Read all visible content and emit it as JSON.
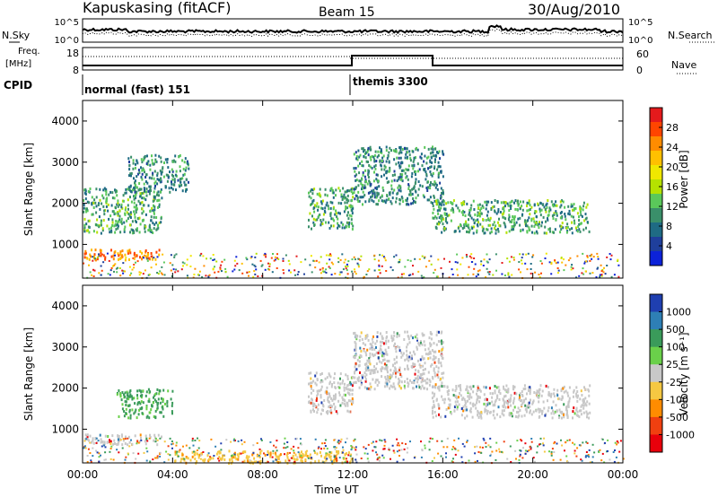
{
  "header": {
    "station": "Kapuskasing (fitACF)",
    "beam": "Beam 15",
    "date": "30/Aug/2010"
  },
  "top_panels": {
    "nsky_label": "N.Sky",
    "nsearch_label": "N.Search",
    "noise_ticks": [
      "10^5",
      "10^0"
    ],
    "freq_label_1": "Freq.",
    "freq_label_2": "[MHz]",
    "freq_ticks": [
      "18",
      "8"
    ],
    "nave_label": "Nave",
    "nave_ticks": [
      "60",
      "0"
    ],
    "cpid_label": "CPID",
    "cpid_modes": [
      "normal (fast) 151",
      "themis 3300"
    ]
  },
  "power_colorbar": {
    "label": "Power [dB]",
    "ticks": [
      "28",
      "24",
      "20",
      "16",
      "12",
      "8",
      "4"
    ],
    "colors": [
      "#e41a1c",
      "#ff4500",
      "#ff8c00",
      "#ffc000",
      "#f0e800",
      "#b5e100",
      "#5ac85a",
      "#3a8f6a",
      "#1f6b84",
      "#1f3f9c",
      "#0c22d8"
    ]
  },
  "velocity_colorbar": {
    "label": "Velocity [m s⁻¹]",
    "ticks": [
      "1000",
      "500",
      "100",
      "25",
      "-25",
      "-100",
      "-500",
      "-1000"
    ],
    "colors": [
      "#1f3fb0",
      "#2e7fb5",
      "#3a9b5a",
      "#6ad04a",
      "#c8c8c8",
      "#f5c842",
      "#ff8c00",
      "#f04010",
      "#e8000b"
    ]
  },
  "chart_data": [
    {
      "type": "heatmap",
      "ylabel": "Slant Range [km]",
      "xlim": [
        0,
        24
      ],
      "ylim": [
        180,
        4500
      ],
      "y_ticks": [
        "1000",
        "2000",
        "3000",
        "4000"
      ],
      "x_ticks": [
        "00:00",
        "04:00",
        "08:00",
        "12:00",
        "16:00",
        "20:00",
        "00:00"
      ],
      "features": [
        {
          "time": [
            0.0,
            3.5
          ],
          "range": [
            650,
            900
          ],
          "power_db": 24
        },
        {
          "time": [
            0.0,
            3.5
          ],
          "range": [
            1300,
            2400
          ],
          "power_db": 10
        },
        {
          "time": [
            2.0,
            4.7
          ],
          "range": [
            2300,
            3200
          ],
          "power_db": 8
        },
        {
          "time": [
            10.0,
            12.0
          ],
          "range": [
            1400,
            2400
          ],
          "power_db": 10
        },
        {
          "time": [
            12.0,
            16.0
          ],
          "range": [
            2000,
            3400
          ],
          "power_db": 8
        },
        {
          "time": [
            15.5,
            22.5
          ],
          "range": [
            1300,
            2100
          ],
          "power_db": 10
        }
      ]
    },
    {
      "type": "heatmap",
      "xlabel": "Time UT",
      "ylabel": "Slant Range [km]",
      "xlim": [
        0,
        24
      ],
      "ylim": [
        180,
        4500
      ],
      "y_ticks": [
        "1000",
        "2000",
        "3000",
        "4000"
      ],
      "x_ticks": [
        "00:00",
        "04:00",
        "08:00",
        "12:00",
        "16:00",
        "20:00",
        "00:00"
      ],
      "features": [
        {
          "time": [
            0.0,
            3.5
          ],
          "range": [
            650,
            900
          ],
          "velocity": 0
        },
        {
          "time": [
            1.5,
            4.0
          ],
          "range": [
            1300,
            2000
          ],
          "velocity": 300
        },
        {
          "time": [
            10.0,
            12.0
          ],
          "range": [
            1400,
            2400
          ],
          "velocity": 0
        },
        {
          "time": [
            12.0,
            16.0
          ],
          "range": [
            2000,
            3400
          ],
          "velocity": 0
        },
        {
          "time": [
            15.5,
            22.5
          ],
          "range": [
            1300,
            2100
          ],
          "velocity": 0
        },
        {
          "time": [
            4.0,
            12.0
          ],
          "range": [
            200,
            500
          ],
          "velocity": -100
        }
      ]
    }
  ]
}
